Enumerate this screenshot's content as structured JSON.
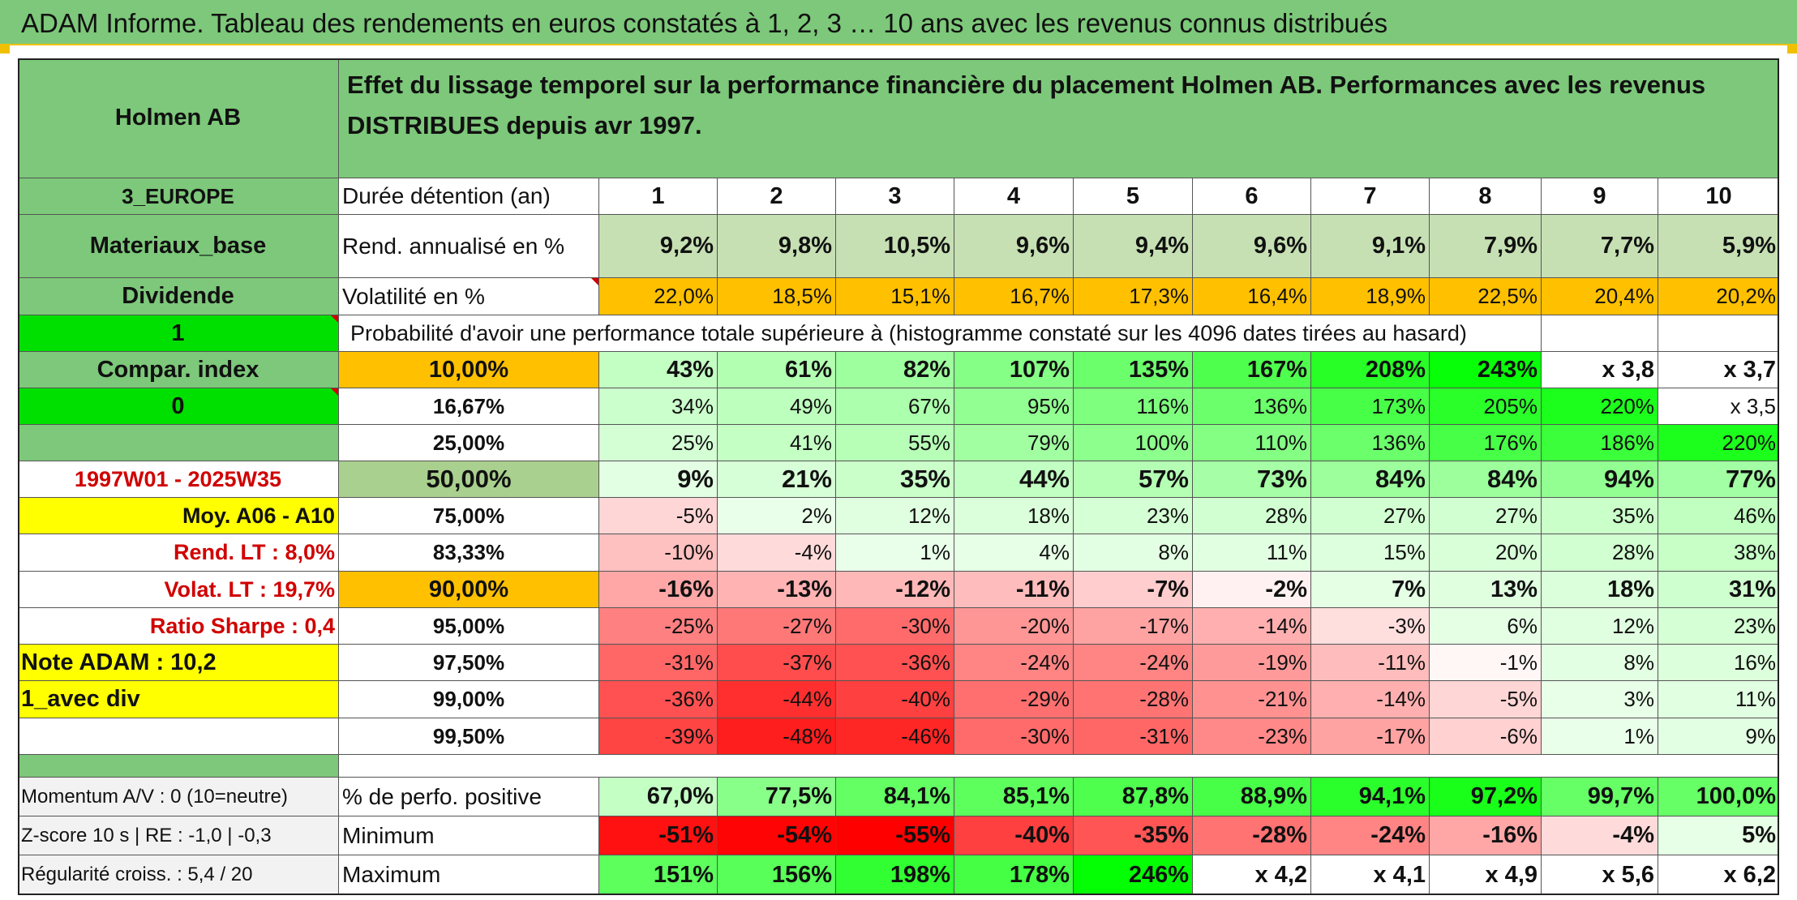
{
  "title": "ADAM Informe. Tableau des rendements en euros constatés à 1, 2, 3 … 10 ans avec les revenus connus distribués",
  "header": {
    "company": "Holmen AB",
    "description": "Effet du lissage temporel sur la performance financière du placement Holmen AB. Performances avec les revenus DISTRIBUES depuis avr 1997."
  },
  "left_panel": {
    "region": "3_EUROPE",
    "sector": "Materiaux_base",
    "income": "Dividende",
    "flag1": "1",
    "compar_index": "Compar. index",
    "flag0": "0",
    "blank": "",
    "period": "1997W01 - 2025W35",
    "moy": "Moy. A06 - A10",
    "rend_lt": "Rend. LT :   8,0%",
    "volat_lt": "Volat. LT :   19,7%",
    "sharpe": "Ratio Sharpe :   0,4",
    "note": "Note ADAM : 10,2",
    "avec_div": "1_avec div",
    "momentum": "Momentum A/V : 0 (10=neutre)",
    "zscore": "Z-score 10 s | RE : -1,0 | -0,3",
    "regularite": "Régularité croiss. : 5,4 / 20"
  },
  "table": {
    "duree_label": "Durée détention (an)",
    "years": [
      "1",
      "2",
      "3",
      "4",
      "5",
      "6",
      "7",
      "8",
      "9",
      "10"
    ],
    "rend_label": "Rend. annualisé en %",
    "rend": [
      "9,2%",
      "9,8%",
      "10,5%",
      "9,6%",
      "9,4%",
      "9,6%",
      "9,1%",
      "7,9%",
      "7,7%",
      "5,9%"
    ],
    "vol_label": "Volatilité en %",
    "vol": [
      "22,0%",
      "18,5%",
      "15,1%",
      "16,7%",
      "17,3%",
      "16,4%",
      "18,9%",
      "22,5%",
      "20,4%",
      "20,2%"
    ],
    "proba_label": "Probabilité d'avoir une performance totale supérieure à (histogramme constaté sur les 4096 dates tirées au hasard)",
    "rows": [
      {
        "p": "10,00%",
        "v": [
          "43%",
          "61%",
          "82%",
          "107%",
          "135%",
          "167%",
          "208%",
          "243%",
          "x 3,8",
          "x 3,7"
        ]
      },
      {
        "p": "16,67%",
        "v": [
          "34%",
          "49%",
          "67%",
          "95%",
          "116%",
          "136%",
          "173%",
          "205%",
          "220%",
          "x 3,5"
        ]
      },
      {
        "p": "25,00%",
        "v": [
          "25%",
          "41%",
          "55%",
          "79%",
          "100%",
          "110%",
          "136%",
          "176%",
          "186%",
          "220%"
        ]
      },
      {
        "p": "50,00%",
        "v": [
          "9%",
          "21%",
          "35%",
          "44%",
          "57%",
          "73%",
          "84%",
          "84%",
          "94%",
          "77%"
        ]
      },
      {
        "p": "75,00%",
        "v": [
          "-5%",
          "2%",
          "12%",
          "18%",
          "23%",
          "28%",
          "27%",
          "27%",
          "35%",
          "46%"
        ]
      },
      {
        "p": "83,33%",
        "v": [
          "-10%",
          "-4%",
          "1%",
          "4%",
          "8%",
          "11%",
          "15%",
          "20%",
          "28%",
          "38%"
        ]
      },
      {
        "p": "90,00%",
        "v": [
          "-16%",
          "-13%",
          "-12%",
          "-11%",
          "-7%",
          "-2%",
          "7%",
          "13%",
          "18%",
          "31%"
        ]
      },
      {
        "p": "95,00%",
        "v": [
          "-25%",
          "-27%",
          "-30%",
          "-20%",
          "-17%",
          "-14%",
          "-3%",
          "6%",
          "12%",
          "23%"
        ]
      },
      {
        "p": "97,50%",
        "v": [
          "-31%",
          "-37%",
          "-36%",
          "-24%",
          "-24%",
          "-19%",
          "-11%",
          "-1%",
          "8%",
          "16%"
        ]
      },
      {
        "p": "99,00%",
        "v": [
          "-36%",
          "-44%",
          "-40%",
          "-29%",
          "-28%",
          "-21%",
          "-14%",
          "-5%",
          "3%",
          "11%"
        ]
      },
      {
        "p": "99,50%",
        "v": [
          "-39%",
          "-48%",
          "-46%",
          "-30%",
          "-31%",
          "-23%",
          "-17%",
          "-6%",
          "1%",
          "9%"
        ]
      }
    ],
    "pos_label": "% de perfo. positive",
    "pos": [
      "67,0%",
      "77,5%",
      "84,1%",
      "85,1%",
      "87,8%",
      "88,9%",
      "94,1%",
      "97,2%",
      "99,7%",
      "100,0%"
    ],
    "min_label": "Minimum",
    "min": [
      "-51%",
      "-54%",
      "-55%",
      "-40%",
      "-35%",
      "-28%",
      "-24%",
      "-16%",
      "-4%",
      "5%"
    ],
    "max_label": "Maximum",
    "max": [
      "151%",
      "156%",
      "198%",
      "178%",
      "246%",
      "x 4,2",
      "x 4,1",
      "x 4,9",
      "x 5,6",
      "x 6,2"
    ]
  },
  "colors": {
    "header_green": "#7dc87a",
    "highlight_yellow": "#ffff00",
    "highlight_orange": "#ffc000",
    "bright_green": "#00e000",
    "label_red": "#d00000"
  }
}
